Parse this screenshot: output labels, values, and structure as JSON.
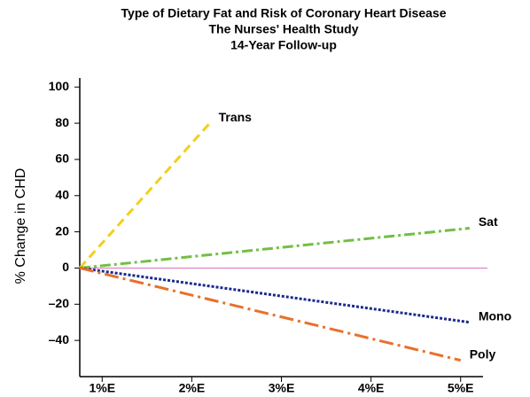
{
  "chart_data": {
    "type": "line",
    "title": [
      "Type of Dietary Fat and Risk of Coronary Heart Disease",
      "The Nurses' Health Study",
      "14-Year Follow-up"
    ],
    "y_label": "% Change in CHD",
    "xlim": [
      0.75,
      5.25
    ],
    "xticks": [
      {
        "value": 1,
        "label": "1%E"
      },
      {
        "value": 2,
        "label": "2%E"
      },
      {
        "value": 3,
        "label": "3%E"
      },
      {
        "value": 4,
        "label": "4%E"
      },
      {
        "value": 5,
        "label": "5%E"
      }
    ],
    "ylim": [
      -60,
      105
    ],
    "yticks": [
      100,
      80,
      60,
      40,
      20,
      0,
      {
        "value": -20,
        "label": "–20"
      },
      {
        "value": -40,
        "label": "–40"
      }
    ],
    "zero_line_color": "#e070c0",
    "series": [
      {
        "name": "Trans",
        "color": "#f2cf1d",
        "dash": "10,6",
        "x": [
          0.75,
          2.2
        ],
        "values": [
          0,
          80
        ]
      },
      {
        "name": "Sat",
        "color": "#72bf44",
        "dash": "12,4,3,4",
        "x": [
          0.75,
          5.1
        ],
        "values": [
          0,
          22
        ]
      },
      {
        "name": "Mono",
        "color": "#1b2a8a",
        "dash": "3,2",
        "x": [
          0.75,
          5.1
        ],
        "values": [
          0,
          -30
        ]
      },
      {
        "name": "Poly",
        "color": "#e8702a",
        "dash": "16,5,3,5",
        "x": [
          0.75,
          5.0
        ],
        "values": [
          0,
          -51
        ]
      }
    ]
  }
}
